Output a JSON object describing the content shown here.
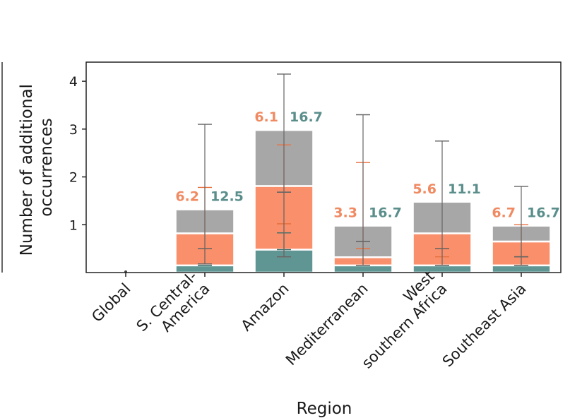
{
  "chart_data": {
    "type": "bar",
    "stacked": true,
    "xlabel": "Region",
    "ylabel": [
      "Number of additional",
      "occurrences"
    ],
    "ylim": [
      0,
      4.4
    ],
    "yticks": [
      1,
      2,
      3,
      4
    ],
    "grid": false,
    "categories": [
      [
        "Global"
      ],
      [
        "S. Central-",
        "America"
      ],
      [
        "Amazon"
      ],
      [
        "Mediterranean"
      ],
      [
        "West",
        "southern Africa"
      ],
      [
        "Southeast Asia"
      ]
    ],
    "series": [
      {
        "color": "#5f9693",
        "values": [
          0,
          0.15,
          0.48,
          0.15,
          0.15,
          0.15
        ]
      },
      {
        "color": "#f9906b",
        "values": [
          0,
          0.67,
          1.33,
          0.17,
          0.67,
          0.5
        ]
      },
      {
        "color": "#a7a7a7",
        "values": [
          0,
          0.5,
          1.17,
          0.66,
          0.66,
          0.33
        ]
      }
    ],
    "error_bars": [
      {
        "color": "#3b6e6b",
        "points": [
          [
            0,
            0,
            0
          ],
          [
            0.15,
            0.15,
            0.15
          ],
          [
            0.48,
            0.33,
            0.83
          ],
          [
            0.15,
            0.15,
            0.15
          ],
          [
            0.15,
            0.15,
            0.15
          ],
          [
            0.15,
            0.15,
            0.15
          ]
        ]
      },
      {
        "color": "#e8703f",
        "points": [
          [
            0,
            0,
            0
          ],
          [
            0.5,
            0.18,
            1.78
          ],
          [
            1.02,
            0.33,
            2.67
          ],
          [
            0.5,
            0.15,
            2.3
          ],
          [
            0.5,
            0.33,
            0.5
          ],
          [
            0.33,
            0.15,
            1.0
          ]
        ]
      },
      {
        "color": "#666666",
        "points": [
          [
            0,
            0,
            0
          ],
          [
            0.5,
            0.18,
            3.1
          ],
          [
            1.68,
            0.33,
            4.15
          ],
          [
            0.65,
            0.15,
            3.3
          ],
          [
            0.5,
            0.15,
            2.75
          ],
          [
            0.33,
            0.15,
            1.8
          ]
        ]
      }
    ],
    "annotations": [
      null,
      {
        "orange": "6.2",
        "teal": "12.5"
      },
      {
        "orange": "6.1",
        "teal": "16.7"
      },
      {
        "orange": "3.3",
        "teal": "16.7"
      },
      {
        "orange": "5.6",
        "teal": "11.1"
      },
      {
        "orange": "6.7",
        "teal": "16.7"
      }
    ],
    "annotation_colors": {
      "orange": "#f08a62",
      "teal": "#5a8e8b"
    }
  }
}
